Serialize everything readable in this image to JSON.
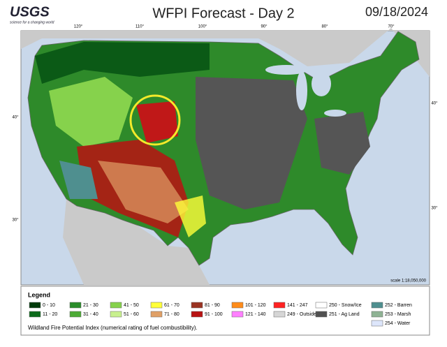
{
  "header": {
    "logo": "USGS",
    "tagline": "science for a changing world",
    "title": "WFPI Forecast - Day 2",
    "date": "09/18/2024"
  },
  "map": {
    "longitudes": [
      "120°",
      "110°",
      "100°",
      "90°",
      "80°",
      "70°"
    ],
    "latitudes_left": [
      "40°",
      "30°"
    ],
    "latitudes_right": [
      "40°",
      "30°"
    ],
    "scale": "scale 1:18,050,000"
  },
  "legend": {
    "title": "Legend",
    "items": [
      {
        "label": "0 - 10",
        "color": "#003a0a"
      },
      {
        "label": "11 - 20",
        "color": "#0b6a1a"
      },
      {
        "label": "21 - 30",
        "color": "#2a8c2a"
      },
      {
        "label": "31 - 40",
        "color": "#4cab35"
      },
      {
        "label": "41 - 50",
        "color": "#86d24c"
      },
      {
        "label": "51 - 60",
        "color": "#c8f08e"
      },
      {
        "label": "61 - 70",
        "color": "#ffff3a"
      },
      {
        "label": "71 - 80",
        "color": "#e0a066"
      },
      {
        "label": "81 - 90",
        "color": "#9a3322"
      },
      {
        "label": "91 - 100",
        "color": "#b81212"
      },
      {
        "label": "101 - 120",
        "color": "#ff8c1a"
      },
      {
        "label": "121 - 140",
        "color": "#ff80ff"
      },
      {
        "label": "141 - 247",
        "color": "#ff2222"
      },
      {
        "label": "249 - Outside US",
        "color": "#d6d6d6"
      },
      {
        "label": "250 - Snow/Ice",
        "color": "#ffffff"
      },
      {
        "label": "251 - Ag Land",
        "color": "#505050"
      },
      {
        "label": "252 - Barren",
        "color": "#4f8f8f"
      },
      {
        "label": "253 - Marsh",
        "color": "#8fb394"
      },
      {
        "label": "254 - Water",
        "color": "#dde6fb"
      }
    ],
    "note": "Wildland Fire Potential Index (numerical rating of fuel combustibility)."
  }
}
